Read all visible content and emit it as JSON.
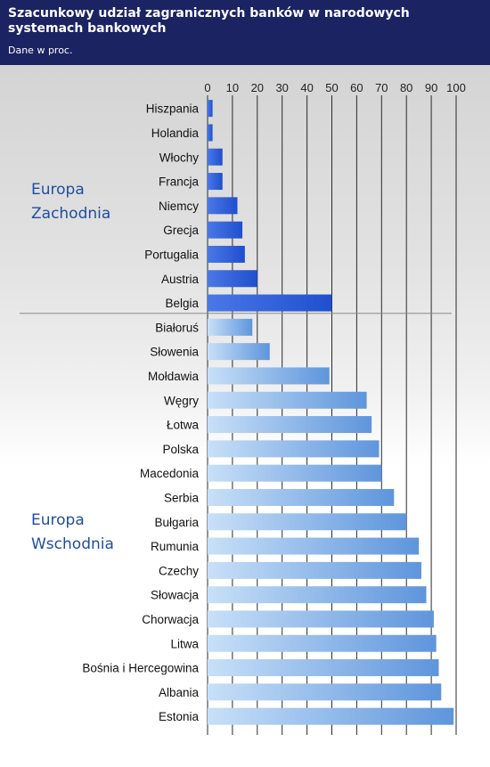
{
  "header": {
    "title": "Szacunkowy udział zagranicznych banków w narodowych systemach bankowych",
    "subtitle": "Dane w proc."
  },
  "chart_data": {
    "type": "bar",
    "orientation": "horizontal",
    "title": "Szacunkowy udział zagranicznych banków w narodowych systemach bankowych",
    "subtitle": "Dane w proc.",
    "xlim": [
      0,
      100
    ],
    "x_ticks": [
      0,
      10,
      20,
      30,
      40,
      50,
      60,
      70,
      80,
      90,
      100
    ],
    "grid": true,
    "categories": [
      "Hiszpania",
      "Holandia",
      "Włochy",
      "Francja",
      "Niemcy",
      "Grecja",
      "Portugalia",
      "Austria",
      "Belgia",
      "Białoruś",
      "Słowenia",
      "Mołdawia",
      "Węgry",
      "Łotwa",
      "Polska",
      "Macedonia",
      "Serbia",
      "Bułgaria",
      "Rumunia",
      "Czechy",
      "Słowacja",
      "Chorwacja",
      "Litwa",
      "Bośnia i Hercegowina",
      "Albania",
      "Estonia"
    ],
    "values": [
      2,
      2,
      6,
      6,
      12,
      14,
      15,
      20,
      50,
      18,
      25,
      49,
      64,
      66,
      69,
      70,
      75,
      80,
      85,
      86,
      88,
      91,
      92,
      93,
      94,
      99
    ],
    "groups": [
      {
        "name": "Europa Zachodnia",
        "lines": [
          "Europa",
          "Zachodnia"
        ],
        "categories": [
          "Hiszpania",
          "Holandia",
          "Włochy",
          "Francja",
          "Niemcy",
          "Grecja",
          "Portugalia",
          "Austria",
          "Belgia"
        ],
        "color": "#1f4fcf"
      },
      {
        "name": "Europa Wschodnia",
        "lines": [
          "Europa",
          "Wschodnia"
        ],
        "categories": [
          "Białoruś",
          "Słowenia",
          "Mołdawia",
          "Węgry",
          "Łotwa",
          "Polska",
          "Macedonia",
          "Serbia",
          "Bułgaria",
          "Rumunia",
          "Czechy",
          "Słowacja",
          "Chorwacja",
          "Litwa",
          "Bośnia i Hercegowina",
          "Albania",
          "Estonia"
        ],
        "color": "#7ab0e8"
      }
    ]
  },
  "colors": {
    "header_bg": "#1b2363",
    "west_bar_dark": "#1f4fcf",
    "west_bar_light": "#4a78e6",
    "east_bar_light": "#c8e0f8",
    "east_bar_dark": "#5e95dc",
    "gridline": "#2a2a2a",
    "group_label": "#1f4e9c"
  }
}
